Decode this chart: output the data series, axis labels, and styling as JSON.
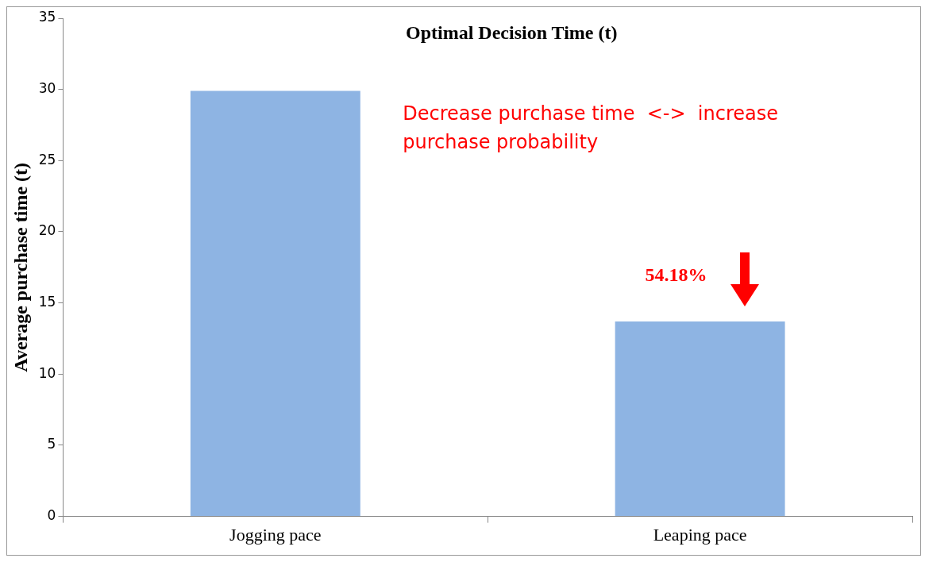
{
  "chart_data": {
    "type": "bar",
    "title": "Optimal Decision Time (t)",
    "ylabel": "Average purchase time (t)",
    "categories": [
      "Jogging pace",
      "Leaping pace"
    ],
    "values": [
      29.9,
      13.7
    ],
    "color": "#8eb4e3",
    "ylim": [
      0,
      35
    ],
    "yticks": [
      0,
      5,
      10,
      15,
      20,
      25,
      30,
      35
    ],
    "grid": false,
    "legend": false,
    "annotations": [
      "Decrease purchase time  <->  increase purchase probability",
      "54.18%"
    ]
  }
}
